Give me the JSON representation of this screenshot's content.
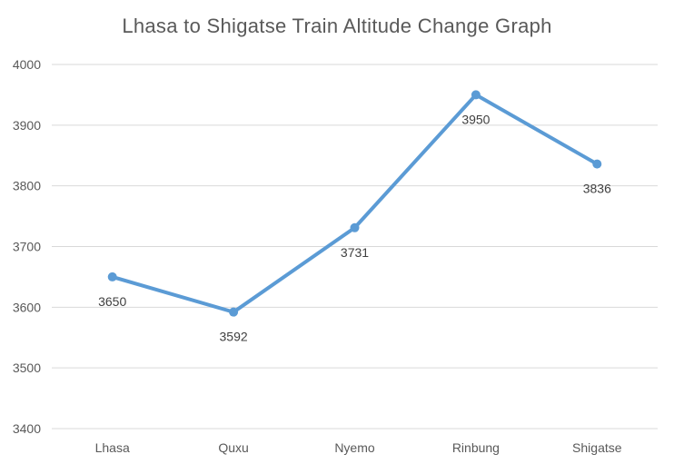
{
  "chart_data": {
    "type": "line",
    "title": "Lhasa to Shigatse Train Altitude Change Graph",
    "categories": [
      "Lhasa",
      "Quxu",
      "Nyemo",
      "Rinbung",
      "Shigatse"
    ],
    "series": [
      {
        "values": [
          3650,
          3592,
          3731,
          3950,
          3836
        ],
        "color": "#5b9bd5"
      }
    ],
    "ylim": [
      3400,
      4000
    ],
    "yticks": [
      3400,
      3500,
      3600,
      3700,
      3800,
      3900,
      4000
    ],
    "grid": true,
    "legend": "none",
    "data_labels": true
  }
}
